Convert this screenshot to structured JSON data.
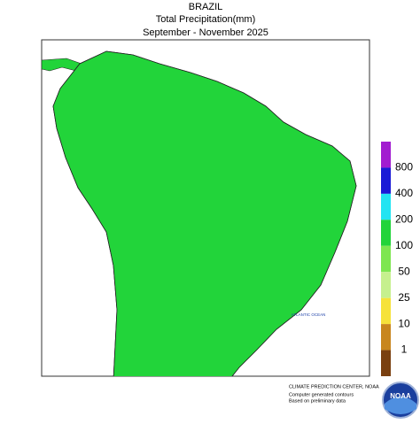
{
  "header": {
    "title": "BRAZIL",
    "subtitle": "Total Precipitation(mm)",
    "period": "September - November 2025"
  },
  "legend": {
    "labels": [
      800,
      400,
      200,
      100,
      50,
      25,
      10,
      1
    ],
    "colors": [
      "#a21cd0",
      "#1a1ad6",
      "#22e4f2",
      "#22d43a",
      "#7ee650",
      "#c6f08e",
      "#f6e23a",
      "#c8861e",
      "#7a4010"
    ]
  },
  "map": {
    "ocean_label": "ATLANTIC OCEAN"
  },
  "footer": {
    "lines": [
      "CLIMATE PREDICTION CENTER, NOAA",
      "Computer generated contours",
      "Based on preliminary data"
    ],
    "logo": "NOAA"
  }
}
